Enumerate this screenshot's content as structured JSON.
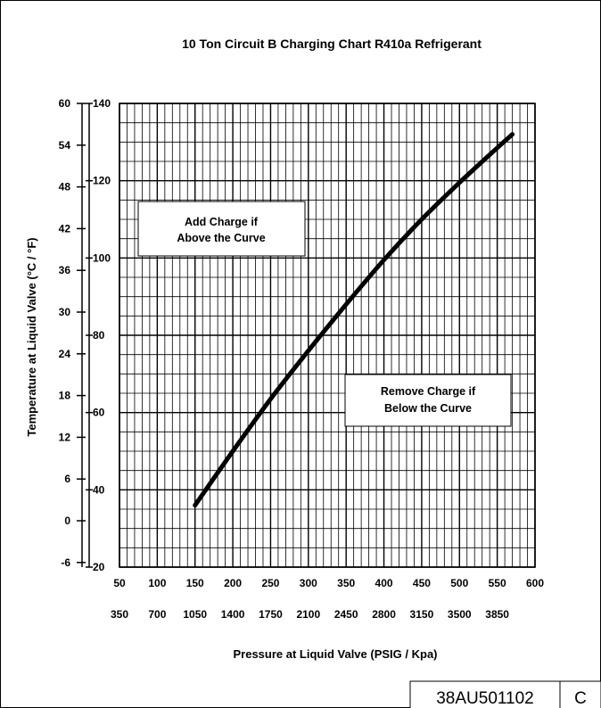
{
  "chart_data": {
    "type": "line",
    "title": "10 Ton Circuit B Charging Chart R410a Refrigerant",
    "xlabel": "Pressure at Liquid Valve  (PSIG / Kpa)",
    "ylabel": "Temperature at Liquid Valve (°C / °F)",
    "xlim": [
      50,
      600
    ],
    "ylim": [
      20,
      140
    ],
    "x_ticks_psig": [
      "50",
      "100",
      "150",
      "200",
      "250",
      "300",
      "350",
      "400",
      "450",
      "500",
      "550",
      "600"
    ],
    "x_ticks_kpa": [
      "350",
      "700",
      "1050",
      "1400",
      "1750",
      "2100",
      "2450",
      "2800",
      "3150",
      "3500",
      "3850"
    ],
    "y_ticks_f": [
      "20",
      "40",
      "60",
      "80",
      "100",
      "120",
      "140"
    ],
    "y_ticks_c": [
      "-6",
      "0",
      "6",
      "12",
      "18",
      "24",
      "30",
      "36",
      "42",
      "48",
      "54",
      "60"
    ],
    "grid": true,
    "series": [
      {
        "x": [
          150,
          200,
          250,
          300,
          350,
          400,
          450,
          500,
          550,
          570
        ],
        "y": [
          36,
          50,
          63.5,
          76,
          88,
          99.5,
          110,
          119.5,
          128.5,
          132
        ]
      }
    ],
    "annotations": {
      "add_charge": [
        "Add Charge if",
        "Above the Curve"
      ],
      "remove_charge": [
        "Remove Charge if",
        "Below the Curve"
      ]
    }
  },
  "doc_number": "38AU501102",
  "revision": "C"
}
